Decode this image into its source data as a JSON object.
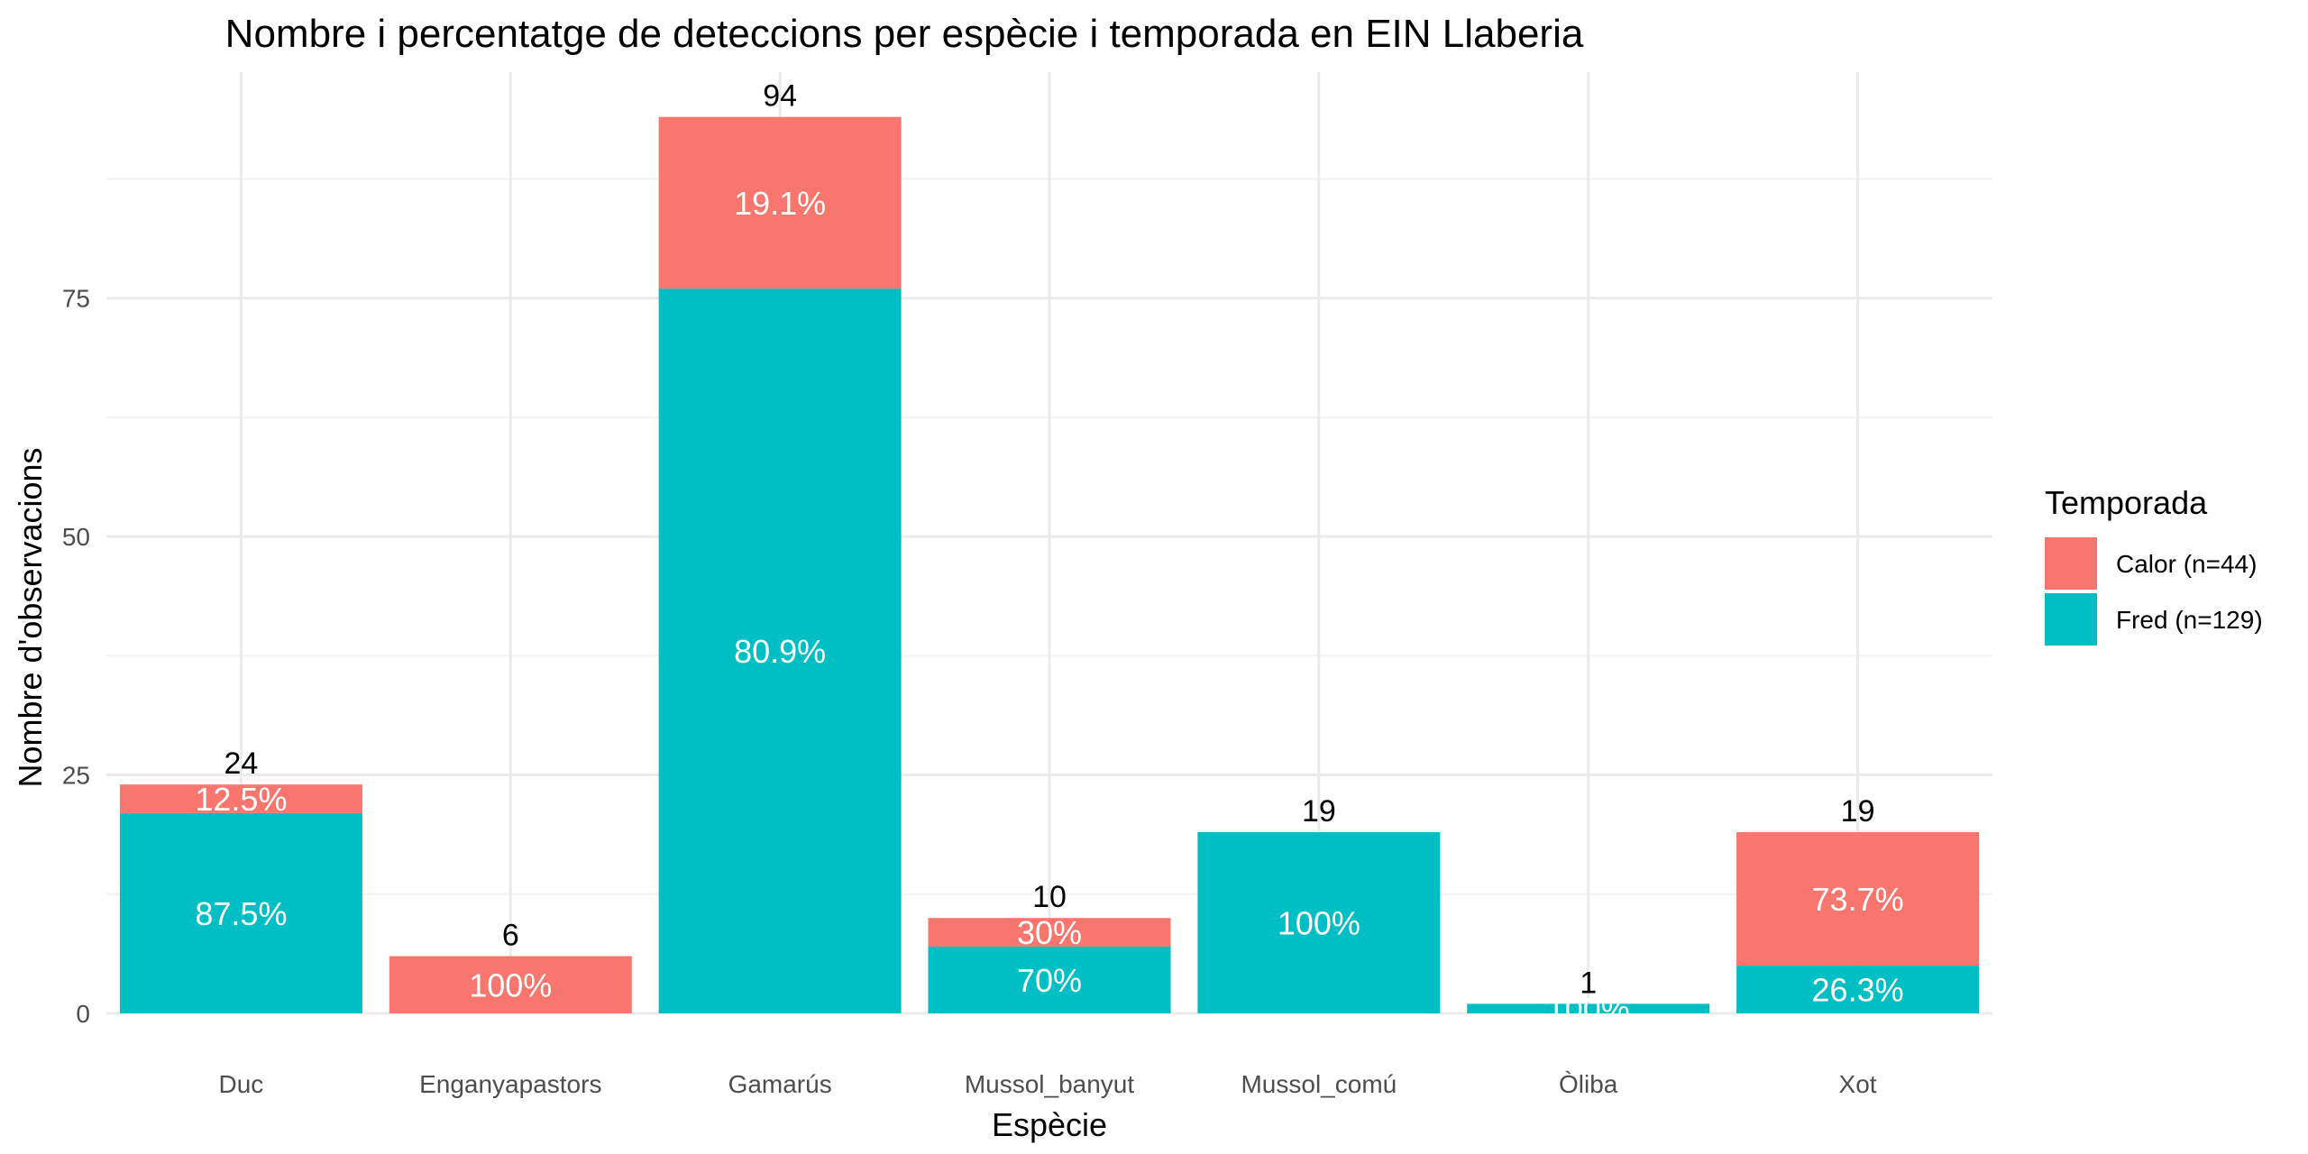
{
  "chart_data": {
    "type": "bar",
    "stacked": true,
    "title": "Nombre i percentatge de deteccions per espècie i temporada en EIN Llaberia",
    "xlabel": "Espècie",
    "ylabel": "Nombre d'observacions",
    "ylim": [
      0,
      98.7
    ],
    "yticks": [
      "0",
      "25",
      "50",
      "75"
    ],
    "grid": true,
    "legend_position": "right",
    "categories": [
      "Duc",
      "Enganyapastors",
      "Gamarús",
      "Mussol_banyut",
      "Mussol_comú",
      "Òliba",
      "Xot"
    ],
    "totals": [
      "24",
      "6",
      "94",
      "10",
      "19",
      "1",
      "19"
    ],
    "series": [
      {
        "name": "Fred (n=129)",
        "color": "#00BFC4",
        "values": [
          21,
          0,
          76,
          7,
          19,
          1,
          5
        ],
        "labels": [
          "87.5%",
          "",
          "80.9%",
          "70%",
          "100%",
          "100%",
          "26.3%"
        ]
      },
      {
        "name": "Calor (n=44)",
        "color": "#F8766D",
        "values": [
          3,
          6,
          18,
          3,
          0,
          0,
          14
        ],
        "labels": [
          "12.5%",
          "100%",
          "19.1%",
          "30%",
          "",
          "",
          "73.7%"
        ]
      }
    ],
    "legend": {
      "title": "Temporada",
      "entries": [
        {
          "label": "Calor (n=44)",
          "color": "#F8766D"
        },
        {
          "label": "Fred (n=129)",
          "color": "#00BFC4"
        }
      ]
    }
  }
}
